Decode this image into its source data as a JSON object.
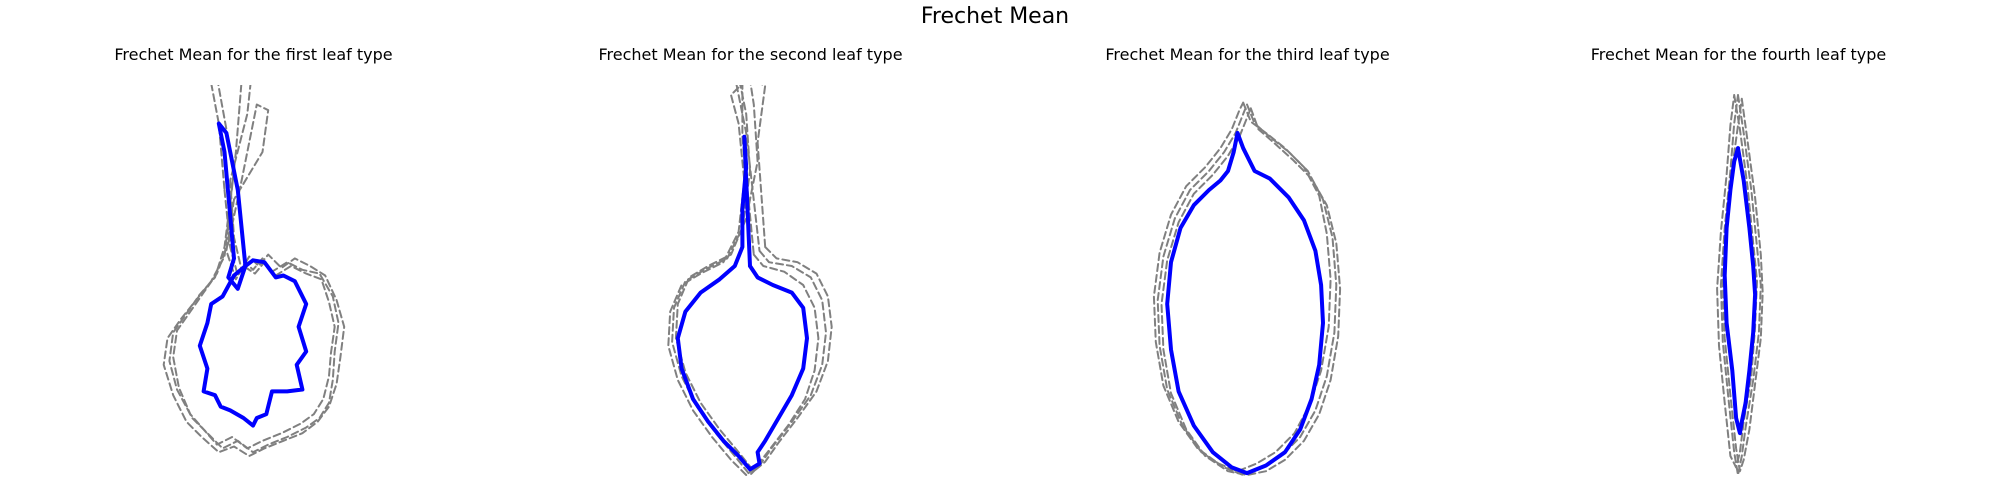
{
  "figure": {
    "title": "Frechet Mean"
  },
  "colors": {
    "samples": "#808080",
    "mean": "#0000ff"
  },
  "chart_data": [
    {
      "type": "line",
      "title": "Frechet Mean for the first leaf type",
      "axes_visible": false,
      "series": [
        {
          "style": "dashed",
          "color": "#808080",
          "x": [
            -0.15,
            -0.12,
            -0.08,
            -0.04,
            0.0,
            0.05,
            0.1,
            0.18,
            0.26,
            0.35,
            0.42,
            0.45,
            0.43,
            0.42,
            0.4,
            0.35,
            0.28,
            0.18,
            0.08,
            0.0,
            -0.08,
            -0.16,
            -0.24,
            -0.32,
            -0.4,
            -0.44,
            -0.42,
            -0.35,
            -0.28,
            -0.2,
            -0.15,
            -0.1,
            -0.2,
            -0.25,
            -0.18,
            -0.15
          ],
          "y": [
            0.5,
            0.2,
            0.05,
            0.12,
            0.08,
            0.14,
            0.07,
            0.12,
            0.08,
            0.06,
            -0.06,
            -0.2,
            -0.35,
            -0.5,
            -0.62,
            -0.7,
            -0.75,
            -0.8,
            -0.84,
            -0.88,
            -0.82,
            -0.86,
            -0.78,
            -0.7,
            -0.55,
            -0.4,
            -0.25,
            -0.15,
            -0.05,
            0.04,
            0.2,
            0.6,
            1.15,
            1.22,
            0.85,
            0.5
          ]
        },
        {
          "style": "dashed",
          "color": "#808080",
          "x": [
            -0.12,
            -0.1,
            -0.06,
            -0.02,
            0.03,
            0.08,
            0.15,
            0.22,
            0.3,
            0.38,
            0.44,
            0.48,
            0.46,
            0.44,
            0.4,
            0.34,
            0.26,
            0.16,
            0.06,
            -0.02,
            -0.1,
            -0.18,
            -0.27,
            -0.35,
            -0.42,
            -0.47,
            -0.45,
            -0.38,
            -0.3,
            -0.22,
            -0.15,
            -0.09,
            -0.05,
            0.0,
            -0.03,
            -0.12
          ],
          "y": [
            0.55,
            0.25,
            0.08,
            0.15,
            0.1,
            0.16,
            0.09,
            0.14,
            0.1,
            0.05,
            -0.08,
            -0.22,
            -0.38,
            -0.52,
            -0.64,
            -0.72,
            -0.78,
            -0.82,
            -0.86,
            -0.9,
            -0.85,
            -0.88,
            -0.8,
            -0.72,
            -0.58,
            -0.42,
            -0.28,
            -0.18,
            -0.08,
            0.02,
            0.15,
            0.7,
            1.2,
            1.18,
            0.9,
            0.55
          ]
        },
        {
          "style": "dashed",
          "color": "#808080",
          "x": [
            -0.1,
            -0.14,
            -0.09,
            -0.05,
            0.01,
            0.06,
            0.12,
            0.2,
            0.28,
            0.36,
            0.4,
            0.43,
            0.41,
            0.4,
            0.37,
            0.32,
            0.25,
            0.15,
            0.05,
            -0.03,
            -0.11,
            -0.19,
            -0.26,
            -0.33,
            -0.39,
            -0.42,
            -0.4,
            -0.33,
            -0.26,
            -0.19,
            -0.13,
            -0.06,
            0.02,
            0.08,
            0.05,
            -0.1
          ],
          "y": [
            0.45,
            0.18,
            0.03,
            0.1,
            0.06,
            0.12,
            0.05,
            0.1,
            0.06,
            0.03,
            -0.09,
            -0.22,
            -0.36,
            -0.48,
            -0.6,
            -0.68,
            -0.73,
            -0.78,
            -0.82,
            -0.86,
            -0.8,
            -0.84,
            -0.76,
            -0.68,
            -0.54,
            -0.38,
            -0.24,
            -0.14,
            -0.04,
            0.06,
            0.22,
            0.55,
            0.95,
            0.92,
            0.7,
            0.45
          ]
        },
        {
          "style": "solid",
          "color": "#0000ff",
          "name": "",
          "x": [
            -0.1,
            -0.13,
            -0.08,
            -0.04,
            0.0,
            0.06,
            0.12,
            0.16,
            0.22,
            0.28,
            0.24,
            0.28,
            0.23,
            0.26,
            0.18,
            0.1,
            0.07,
            0.02,
            0.0,
            -0.05,
            -0.12,
            -0.17,
            -0.2,
            -0.26,
            -0.24,
            -0.28,
            -0.24,
            -0.22,
            -0.16,
            -0.1,
            -0.04,
            -0.08,
            -0.14,
            -0.18,
            -0.15,
            -0.1
          ],
          "y": [
            0.14,
            0.04,
            -0.02,
            0.1,
            0.13,
            0.12,
            0.04,
            0.05,
            0.02,
            -0.1,
            -0.22,
            -0.35,
            -0.42,
            -0.55,
            -0.56,
            -0.56,
            -0.68,
            -0.7,
            -0.74,
            -0.7,
            -0.66,
            -0.64,
            -0.58,
            -0.56,
            -0.44,
            -0.32,
            -0.2,
            -0.1,
            -0.06,
            0.05,
            0.1,
            0.5,
            0.8,
            0.85,
            0.7,
            0.14
          ]
        }
      ]
    },
    {
      "type": "line",
      "title": "Frechet Mean for the second leaf type",
      "axes_visible": false,
      "series": [
        {
          "style": "dashed",
          "color": "#808080",
          "x": [
            0.05,
            0.1,
            0.22,
            0.32,
            0.38,
            0.4,
            0.38,
            0.32,
            0.22,
            0.12,
            0.05,
            0.0,
            -0.08,
            -0.18,
            -0.28,
            -0.36,
            -0.41,
            -0.4,
            -0.34,
            -0.24,
            -0.12,
            -0.04,
            0.0,
            -0.02,
            -0.05,
            -0.08,
            -0.02,
            0.05
          ],
          "y": [
            0.18,
            0.12,
            0.1,
            0.04,
            -0.08,
            -0.25,
            -0.42,
            -0.58,
            -0.72,
            -0.85,
            -0.95,
            -1.0,
            -0.9,
            -0.78,
            -0.64,
            -0.48,
            -0.3,
            -0.12,
            0.02,
            0.08,
            0.14,
            0.3,
            0.6,
            0.9,
            1.05,
            1.1,
            0.8,
            0.18
          ]
        },
        {
          "style": "dashed",
          "color": "#808080",
          "x": [
            0.08,
            0.14,
            0.25,
            0.35,
            0.41,
            0.43,
            0.41,
            0.35,
            0.25,
            0.15,
            0.08,
            0.02,
            -0.06,
            -0.16,
            -0.26,
            -0.34,
            -0.39,
            -0.38,
            -0.32,
            -0.22,
            -0.1,
            -0.02,
            0.04,
            0.02,
            0.0,
            0.08,
            0.04,
            0.08
          ],
          "y": [
            0.2,
            0.14,
            0.12,
            0.06,
            -0.06,
            -0.22,
            -0.4,
            -0.56,
            -0.7,
            -0.83,
            -0.93,
            -0.98,
            -0.88,
            -0.76,
            -0.62,
            -0.46,
            -0.28,
            -0.1,
            0.04,
            0.1,
            0.16,
            0.35,
            0.65,
            0.95,
            1.08,
            1.05,
            0.75,
            0.2
          ]
        },
        {
          "style": "dashed",
          "color": "#808080",
          "x": [
            0.02,
            0.07,
            0.18,
            0.28,
            0.34,
            0.36,
            0.34,
            0.29,
            0.2,
            0.1,
            0.03,
            -0.02,
            -0.1,
            -0.2,
            -0.3,
            -0.38,
            -0.43,
            -0.42,
            -0.36,
            -0.26,
            -0.14,
            -0.06,
            -0.03,
            -0.06,
            -0.1,
            -0.04,
            -0.04,
            0.02
          ],
          "y": [
            0.16,
            0.1,
            0.07,
            0.0,
            -0.12,
            -0.28,
            -0.45,
            -0.6,
            -0.74,
            -0.87,
            -0.96,
            -1.0,
            -0.92,
            -0.8,
            -0.66,
            -0.5,
            -0.32,
            -0.14,
            0.0,
            0.06,
            0.12,
            0.28,
            0.55,
            0.85,
            1.0,
            1.06,
            0.78,
            0.16
          ]
        },
        {
          "style": "solid",
          "color": "#0000ff",
          "name": "",
          "x": [
            0.0,
            0.04,
            0.12,
            0.22,
            0.28,
            0.3,
            0.28,
            0.22,
            0.15,
            0.08,
            0.04,
            0.05,
            0.0,
            -0.06,
            -0.14,
            -0.22,
            -0.3,
            -0.36,
            -0.38,
            -0.34,
            -0.26,
            -0.16,
            -0.08,
            -0.04,
            -0.04,
            -0.02,
            -0.03,
            0.0
          ],
          "y": [
            0.1,
            0.04,
            0.0,
            -0.04,
            -0.12,
            -0.28,
            -0.44,
            -0.58,
            -0.7,
            -0.82,
            -0.88,
            -0.94,
            -0.97,
            -0.9,
            -0.82,
            -0.72,
            -0.6,
            -0.44,
            -0.28,
            -0.14,
            -0.04,
            0.03,
            0.1,
            0.2,
            0.4,
            0.62,
            0.78,
            0.1
          ]
        }
      ]
    },
    {
      "type": "line",
      "title": "Frechet Mean for the third leaf type",
      "axes_visible": false,
      "series": [
        {
          "style": "dashed",
          "color": "#808080",
          "x": [
            0.0,
            0.04,
            0.12,
            0.22,
            0.32,
            0.4,
            0.45,
            0.47,
            0.46,
            0.42,
            0.36,
            0.28,
            0.18,
            0.08,
            -0.02,
            -0.12,
            -0.24,
            -0.34,
            -0.42,
            -0.46,
            -0.47,
            -0.44,
            -0.38,
            -0.3,
            -0.2,
            -0.12,
            -0.06,
            -0.02,
            0.0
          ],
          "y": [
            0.95,
            0.85,
            0.78,
            0.7,
            0.6,
            0.45,
            0.25,
            0.0,
            -0.25,
            -0.48,
            -0.66,
            -0.8,
            -0.9,
            -0.96,
            -1.0,
            -0.96,
            -0.88,
            -0.74,
            -0.55,
            -0.32,
            -0.08,
            0.15,
            0.35,
            0.5,
            0.6,
            0.7,
            0.8,
            0.9,
            0.95
          ]
        },
        {
          "style": "dashed",
          "color": "#808080",
          "x": [
            0.02,
            0.06,
            0.14,
            0.24,
            0.34,
            0.42,
            0.47,
            0.49,
            0.48,
            0.44,
            0.38,
            0.3,
            0.2,
            0.1,
            0.0,
            -0.1,
            -0.22,
            -0.32,
            -0.4,
            -0.44,
            -0.45,
            -0.42,
            -0.36,
            -0.28,
            -0.18,
            -0.1,
            -0.04,
            0.0,
            0.02
          ],
          "y": [
            0.93,
            0.82,
            0.75,
            0.66,
            0.56,
            0.42,
            0.22,
            -0.02,
            -0.27,
            -0.5,
            -0.68,
            -0.82,
            -0.92,
            -0.98,
            -1.0,
            -0.98,
            -0.9,
            -0.76,
            -0.57,
            -0.34,
            -0.1,
            0.13,
            0.33,
            0.48,
            0.58,
            0.68,
            0.78,
            0.88,
            0.93
          ]
        },
        {
          "style": "dashed",
          "color": "#808080",
          "x": [
            -0.02,
            0.02,
            0.1,
            0.2,
            0.3,
            0.38,
            0.42,
            0.44,
            0.43,
            0.39,
            0.33,
            0.25,
            0.15,
            0.05,
            -0.05,
            -0.15,
            -0.26,
            -0.36,
            -0.44,
            -0.48,
            -0.49,
            -0.46,
            -0.4,
            -0.32,
            -0.22,
            -0.14,
            -0.08,
            -0.04,
            -0.02
          ],
          "y": [
            0.96,
            0.86,
            0.8,
            0.72,
            0.62,
            0.47,
            0.27,
            0.03,
            -0.22,
            -0.45,
            -0.63,
            -0.78,
            -0.88,
            -0.94,
            -0.98,
            -0.94,
            -0.86,
            -0.72,
            -0.53,
            -0.3,
            -0.06,
            0.17,
            0.37,
            0.52,
            0.62,
            0.72,
            0.82,
            0.92,
            0.96
          ]
        },
        {
          "style": "solid",
          "color": "#0000ff",
          "name": "",
          "x": [
            -0.05,
            -0.02,
            0.04,
            0.12,
            0.22,
            0.3,
            0.36,
            0.39,
            0.4,
            0.38,
            0.34,
            0.28,
            0.2,
            0.1,
            0.0,
            -0.08,
            -0.18,
            -0.28,
            -0.36,
            -0.4,
            -0.42,
            -0.4,
            -0.35,
            -0.28,
            -0.2,
            -0.14,
            -0.1,
            -0.07,
            -0.05
          ],
          "y": [
            0.8,
            0.72,
            0.6,
            0.56,
            0.46,
            0.34,
            0.18,
            0.0,
            -0.2,
            -0.42,
            -0.6,
            -0.76,
            -0.88,
            -0.95,
            -0.99,
            -0.96,
            -0.88,
            -0.74,
            -0.56,
            -0.34,
            -0.1,
            0.12,
            0.3,
            0.42,
            0.5,
            0.55,
            0.6,
            0.7,
            0.8
          ]
        }
      ]
    },
    {
      "type": "line",
      "title": "Frechet Mean for the fourth leaf type",
      "axes_visible": false,
      "series": [
        {
          "style": "dashed",
          "color": "#808080",
          "x": [
            0.0,
            0.03,
            0.07,
            0.1,
            0.12,
            0.11,
            0.08,
            0.04,
            0.02,
            0.0,
            -0.02,
            -0.05,
            -0.08,
            -0.09,
            -0.07,
            -0.04,
            -0.02,
            0.0
          ],
          "y": [
            1.0,
            0.8,
            0.5,
            0.2,
            0.0,
            -0.25,
            -0.5,
            -0.75,
            -0.9,
            -1.0,
            -0.88,
            -0.6,
            -0.3,
            0.0,
            0.3,
            0.6,
            0.85,
            1.0
          ]
        },
        {
          "style": "dashed",
          "color": "#808080",
          "x": [
            0.02,
            0.05,
            0.09,
            0.12,
            0.13,
            0.12,
            0.09,
            0.06,
            0.03,
            0.01,
            -0.01,
            -0.04,
            -0.07,
            -0.08,
            -0.06,
            -0.03,
            0.0,
            0.02
          ],
          "y": [
            0.98,
            0.76,
            0.46,
            0.16,
            -0.04,
            -0.28,
            -0.52,
            -0.76,
            -0.92,
            -0.98,
            -0.86,
            -0.58,
            -0.28,
            0.02,
            0.32,
            0.62,
            0.84,
            0.98
          ]
        },
        {
          "style": "dashed",
          "color": "#808080",
          "x": [
            -0.02,
            0.01,
            0.05,
            0.08,
            0.1,
            0.09,
            0.07,
            0.03,
            0.01,
            -0.01,
            -0.04,
            -0.07,
            -0.1,
            -0.11,
            -0.09,
            -0.06,
            -0.04,
            -0.02
          ],
          "y": [
            1.0,
            0.82,
            0.52,
            0.22,
            0.02,
            -0.22,
            -0.48,
            -0.72,
            -0.88,
            -0.96,
            -0.9,
            -0.62,
            -0.32,
            -0.02,
            0.28,
            0.58,
            0.84,
            1.0
          ]
        },
        {
          "style": "solid",
          "color": "#0000ff",
          "name": "",
          "x": [
            0.0,
            0.03,
            0.06,
            0.08,
            0.09,
            0.08,
            0.06,
            0.04,
            0.02,
            0.01,
            -0.01,
            -0.03,
            -0.06,
            -0.07,
            -0.06,
            -0.04,
            -0.02,
            0.0
          ],
          "y": [
            0.72,
            0.55,
            0.3,
            0.1,
            -0.05,
            -0.25,
            -0.45,
            -0.62,
            -0.72,
            -0.78,
            -0.7,
            -0.45,
            -0.2,
            0.05,
            0.3,
            0.5,
            0.65,
            0.72
          ]
        }
      ]
    }
  ]
}
